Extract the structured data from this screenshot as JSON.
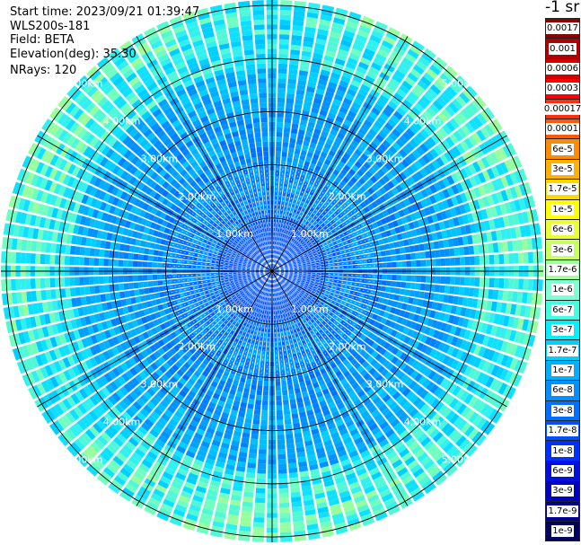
{
  "info": {
    "start_time": "Start time: 2023/09/21 01:39:47",
    "device": "WLS200s-181",
    "field": "Field: BETA",
    "elevation": "Elevation(deg): 35.30",
    "nrays": "NRays: 120"
  },
  "colorbar": {
    "units": "-1 sr",
    "labels": [
      "0.0017",
      "0.001",
      "0.0006",
      "0.0003",
      "0.00017",
      "0.0001",
      "6e-5",
      "3e-5",
      "1.7e-5",
      "1e-5",
      "6e-6",
      "3e-6",
      "1.7e-6",
      "1e-6",
      "6e-7",
      "3e-7",
      "1.7e-7",
      "1e-7",
      "6e-8",
      "3e-8",
      "1.7e-8",
      "1e-8",
      "6e-9",
      "3e-9",
      "1.7e-9",
      "1e-9"
    ],
    "colors": [
      "#8b0000",
      "#b00000",
      "#d40000",
      "#ff0000",
      "#ff3010",
      "#ff5a00",
      "#ff8c00",
      "#ffb000",
      "#ffd700",
      "#ffff00",
      "#e8ff30",
      "#c8ff60",
      "#a0ffa0",
      "#7fffd4",
      "#40ffe0",
      "#00f0ff",
      "#00d0ff",
      "#00b0ff",
      "#0090ff",
      "#0070ff",
      "#0050ff",
      "#0030ff",
      "#0010e0",
      "#0000c0",
      "#000090",
      "#000060"
    ]
  },
  "chart_data": {
    "type": "heatmap",
    "subtype": "polar-ppi",
    "field": "BETA",
    "nrays": 120,
    "range_ring_labels": [
      "1.00km",
      "2.00km",
      "3.00km",
      "4.00km",
      "5.00km"
    ],
    "range_rings_km": [
      1,
      2,
      3,
      4,
      5
    ],
    "max_range_km": 5.1,
    "grid": true,
    "dominant_value_range": [
      "1e-8",
      "1.7e-7"
    ],
    "near_field_value": "1e-8"
  }
}
